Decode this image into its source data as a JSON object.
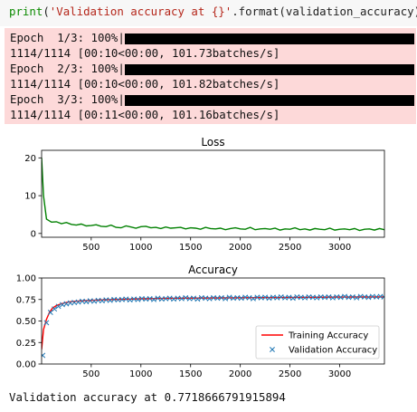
{
  "code": {
    "fn": "print",
    "open": "(",
    "str": "'Validation accuracy at {}'",
    "rest": ".format(validation_accuracy))"
  },
  "progress": [
    {
      "label": "Epoch  1/3: 100%|",
      "detail": "1114/1114 [00:10<00:00, 101.73batches/s]",
      "fraction": 1.0
    },
    {
      "label": "Epoch  2/3: 100%|",
      "detail": "1114/1114 [00:10<00:00, 101.82batches/s]",
      "fraction": 1.0
    },
    {
      "label": "Epoch  3/3: 100%|",
      "detail": "1114/1114 [00:11<00:00, 101.16batches/s]",
      "fraction": 1.0
    }
  ],
  "output_text": "Validation accuracy at 0.7718666791915894",
  "chart_data": [
    {
      "type": "line",
      "title": "Loss",
      "xlim": [
        1,
        3450
      ],
      "ylim": [
        -1,
        22
      ],
      "xticks": [
        500,
        1000,
        1500,
        2000,
        2500,
        3000
      ],
      "yticks": [
        0,
        10,
        20
      ],
      "series": [
        {
          "color": "#008000",
          "x": [
            1,
            20,
            50,
            100,
            150,
            200,
            250,
            300,
            350,
            400,
            450,
            500,
            550,
            600,
            650,
            700,
            750,
            800,
            850,
            900,
            950,
            1000,
            1050,
            1100,
            1150,
            1200,
            1250,
            1300,
            1350,
            1400,
            1450,
            1500,
            1550,
            1600,
            1650,
            1700,
            1750,
            1800,
            1850,
            1900,
            1950,
            2000,
            2050,
            2100,
            2150,
            2200,
            2250,
            2300,
            2350,
            2400,
            2450,
            2500,
            2550,
            2600,
            2650,
            2700,
            2750,
            2800,
            2850,
            2900,
            2950,
            3000,
            3050,
            3100,
            3150,
            3200,
            3250,
            3300,
            3350,
            3400,
            3450
          ],
          "y": [
            20,
            10,
            3.8,
            3.0,
            3.1,
            2.6,
            2.9,
            2.4,
            2.2,
            2.5,
            2.0,
            2.1,
            2.3,
            1.9,
            1.8,
            2.2,
            1.6,
            1.5,
            2.0,
            1.7,
            1.4,
            1.8,
            1.9,
            1.5,
            1.6,
            1.3,
            1.7,
            1.4,
            1.5,
            1.6,
            1.2,
            1.5,
            1.4,
            1.1,
            1.6,
            1.3,
            1.2,
            1.4,
            1.0,
            1.3,
            1.5,
            1.2,
            1.1,
            1.6,
            1.0,
            1.2,
            1.3,
            1.1,
            1.4,
            0.9,
            1.2,
            1.1,
            1.5,
            1.0,
            1.2,
            0.9,
            1.3,
            1.1,
            1.0,
            1.4,
            0.9,
            1.1,
            1.2,
            1.0,
            1.3,
            0.8,
            1.1,
            1.2,
            0.9,
            1.3,
            1.0
          ]
        }
      ]
    },
    {
      "type": "line",
      "title": "Accuracy",
      "xlim": [
        1,
        3450
      ],
      "ylim": [
        0,
        1
      ],
      "xticks": [
        500,
        1000,
        1500,
        2000,
        2500,
        3000
      ],
      "yticks": [
        0.0,
        0.25,
        0.5,
        0.75,
        1.0
      ],
      "legend": "lower-right",
      "series": [
        {
          "name": "Training Accuracy",
          "color": "#ff0000",
          "marker": "line",
          "x": [
            1,
            20,
            50,
            80,
            110,
            150,
            200,
            250,
            300,
            350,
            400,
            500,
            600,
            700,
            800,
            900,
            1000,
            1200,
            1400,
            1600,
            1800,
            2000,
            2200,
            2400,
            2600,
            2800,
            3000,
            3200,
            3450
          ],
          "y": [
            0.17,
            0.4,
            0.52,
            0.6,
            0.65,
            0.68,
            0.7,
            0.715,
            0.725,
            0.73,
            0.735,
            0.74,
            0.745,
            0.75,
            0.752,
            0.755,
            0.758,
            0.762,
            0.765,
            0.766,
            0.768,
            0.77,
            0.772,
            0.773,
            0.775,
            0.776,
            0.778,
            0.779,
            0.78
          ]
        },
        {
          "name": "Validation Accuracy",
          "color": "#1f77b4",
          "marker": "x",
          "x": [
            12,
            50,
            90,
            130,
            170,
            210,
            250,
            290,
            330,
            370,
            410,
            450,
            490,
            530,
            570,
            610,
            650,
            690,
            730,
            770,
            810,
            850,
            890,
            930,
            970,
            1010,
            1050,
            1090,
            1130,
            1170,
            1210,
            1250,
            1290,
            1330,
            1370,
            1410,
            1450,
            1490,
            1530,
            1570,
            1610,
            1650,
            1690,
            1730,
            1770,
            1810,
            1850,
            1890,
            1930,
            1970,
            2010,
            2050,
            2090,
            2130,
            2170,
            2210,
            2250,
            2290,
            2330,
            2370,
            2410,
            2450,
            2490,
            2530,
            2570,
            2610,
            2650,
            2690,
            2730,
            2770,
            2810,
            2850,
            2890,
            2930,
            2970,
            3010,
            3050,
            3090,
            3130,
            3170,
            3210,
            3250,
            3290,
            3330,
            3370,
            3410,
            3445
          ],
          "y": [
            0.1,
            0.48,
            0.6,
            0.64,
            0.67,
            0.69,
            0.7,
            0.71,
            0.715,
            0.72,
            0.73,
            0.725,
            0.735,
            0.73,
            0.74,
            0.735,
            0.745,
            0.74,
            0.75,
            0.745,
            0.75,
            0.755,
            0.745,
            0.755,
            0.75,
            0.76,
            0.755,
            0.76,
            0.75,
            0.765,
            0.755,
            0.76,
            0.765,
            0.755,
            0.765,
            0.76,
            0.77,
            0.76,
            0.765,
            0.755,
            0.77,
            0.765,
            0.76,
            0.77,
            0.765,
            0.77,
            0.76,
            0.775,
            0.765,
            0.77,
            0.765,
            0.775,
            0.77,
            0.76,
            0.775,
            0.77,
            0.775,
            0.765,
            0.775,
            0.77,
            0.78,
            0.77,
            0.775,
            0.765,
            0.78,
            0.775,
            0.77,
            0.78,
            0.775,
            0.77,
            0.78,
            0.775,
            0.78,
            0.77,
            0.78,
            0.775,
            0.785,
            0.775,
            0.78,
            0.77,
            0.785,
            0.78,
            0.775,
            0.785,
            0.78,
            0.785,
            0.78
          ]
        }
      ]
    }
  ]
}
